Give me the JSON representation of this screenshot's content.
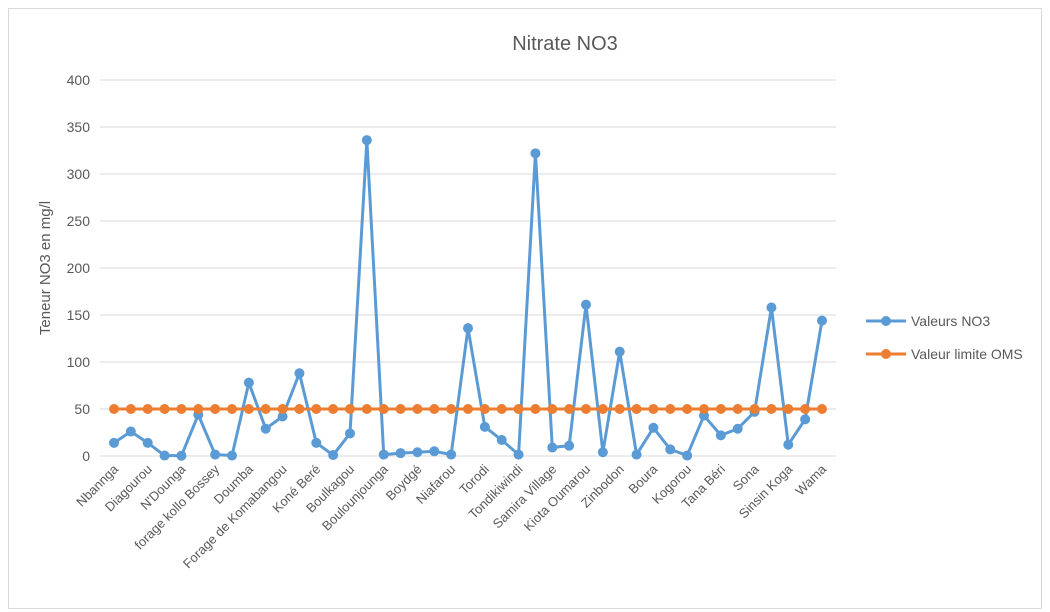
{
  "chart_data": {
    "type": "line",
    "title": "Nitrate NO3",
    "y_label": "Teneur NO3 en mg/l",
    "categories": [
      "Nbannga",
      null,
      "Diagourou",
      null,
      "N'Dounga",
      null,
      "forage kollo Bossey",
      null,
      "Doumba",
      null,
      "Forage de Komabangou",
      null,
      "Koné Beré",
      null,
      "Boulkagou",
      null,
      "Boulounjounga",
      null,
      "Boydgé",
      null,
      "Niafarou",
      null,
      "Torodi",
      null,
      "Tondikiwindi",
      null,
      "Samira Village",
      null,
      "Kiota Oumarou",
      null,
      "Zinbodon",
      null,
      "Boura",
      null,
      "Kogorou",
      null,
      "Tana Béri",
      null,
      "Sona",
      null,
      "Sinsin Koga",
      null,
      "Wama"
    ],
    "series": [
      {
        "name": "Valeurs NO3",
        "color": "#5b9bd5",
        "values": [
          14,
          26,
          14,
          0.5,
          0.3,
          44,
          1.5,
          0.5,
          78,
          29,
          42,
          88,
          14,
          1,
          24,
          336,
          1.5,
          3,
          4,
          5,
          1.5,
          136,
          31,
          17,
          1.5,
          322,
          9,
          11,
          161,
          4,
          111,
          1.5,
          30,
          7,
          0.5,
          43,
          22,
          29,
          47,
          158,
          12,
          39,
          144
        ]
      },
      {
        "name": "Valeur limite OMS",
        "color": "#ed7d31",
        "values": [
          50,
          50,
          50,
          50,
          50,
          50,
          50,
          50,
          50,
          50,
          50,
          50,
          50,
          50,
          50,
          50,
          50,
          50,
          50,
          50,
          50,
          50,
          50,
          50,
          50,
          50,
          50,
          50,
          50,
          50,
          50,
          50,
          50,
          50,
          50,
          50,
          50,
          50,
          50,
          50,
          50,
          50,
          50
        ]
      }
    ],
    "ylim": [
      0,
      400
    ],
    "yticks": [
      0,
      50,
      100,
      150,
      200,
      250,
      300,
      350,
      400
    ],
    "grid": true,
    "legend": "right"
  }
}
